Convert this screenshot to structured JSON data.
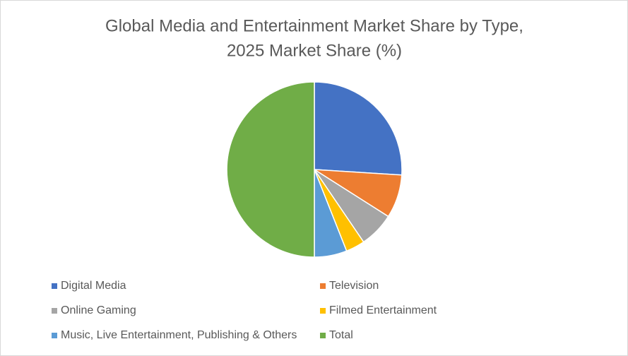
{
  "chart_data": {
    "type": "pie",
    "title": [
      "Global Media and Entertainment Market Share by Type,",
      "2025 Market Share (%)"
    ],
    "categories": [
      "Digital Media",
      "Television",
      "Online Gaming",
      "Filmed Entertainment",
      "Music, Live Entertainment, Publishing & Others",
      "Total"
    ],
    "values": [
      26,
      8,
      6.5,
      3.5,
      6,
      50
    ],
    "colors": [
      "#4472c4",
      "#ed7d31",
      "#a5a5a5",
      "#ffc000",
      "#5b9bd5",
      "#70ad47"
    ],
    "legend": "bottom"
  }
}
